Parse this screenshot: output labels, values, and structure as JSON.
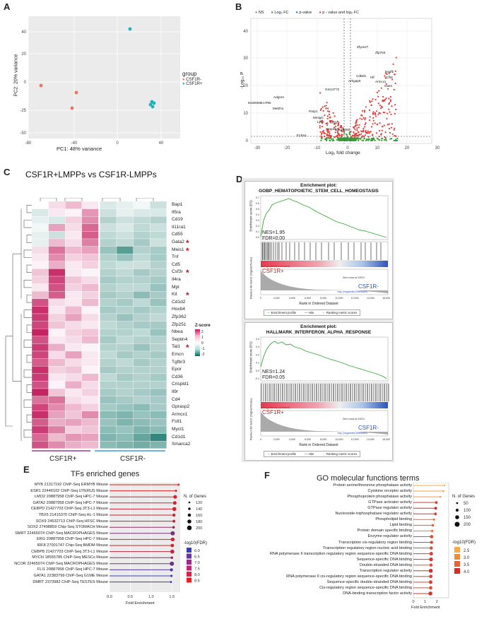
{
  "panel_labels": {
    "A": "A",
    "B": "B",
    "C": "C",
    "D": "D",
    "E": "E",
    "F": "F"
  },
  "pca": {
    "xlabel": "PC1: 48% variance",
    "ylabel": "PC2: 20% variance",
    "xticks": [
      "-80",
      "-40",
      "0",
      "40"
    ],
    "yticks": [
      "40",
      "20",
      "0",
      "-25",
      "-50"
    ],
    "legend_title": "group",
    "legend": [
      {
        "name": "CSF1R-",
        "color": "#e8735f"
      },
      {
        "name": "CSF1R+",
        "color": "#1fb0b8"
      }
    ]
  },
  "volcano": {
    "legend": [
      {
        "name": "NS",
        "color": "#888888"
      },
      {
        "name": "Log₂ FC",
        "color": "#3a9a3a"
      },
      {
        "name": "p-value",
        "color": "#3366cc"
      },
      {
        "name": "p - value and log₂ FC",
        "color": "#e53935"
      }
    ],
    "xlabel": "Log₂ fold change",
    "ylabel": "-Log₁₀ P",
    "xticks": [
      "-30",
      "-20",
      "-10",
      "0",
      "10",
      "20",
      "30"
    ],
    "yticks": [
      "40",
      "30",
      "20",
      "10",
      "0"
    ],
    "genes": [
      "Zfyve27",
      "Zfp763",
      "Nedfb",
      "Cdk8l1",
      "Hlf",
      "Cfh8",
      "Arhgap6",
      "Armcx1",
      "Gas4",
      "Gm13772",
      "Adgre4",
      "9430008E17Rik",
      "Mettl7a",
      "Parp1",
      "Me4glc",
      "Ly6e",
      "Hsf1",
      "Ampd3",
      "Gm16060",
      "Il13ra1"
    ]
  },
  "heatmap": {
    "title": "CSF1R+LMPPs vs CSF1R-LMPPs",
    "genes": [
      "Bap1",
      "Il5ra",
      "Cd19",
      "Il11ra1",
      "Cd55",
      "Gata2",
      "Meis1",
      "Tnf",
      "Cd5",
      "Csf3r",
      "Il4ra",
      "Mpl",
      "Kit",
      "Cd1d2",
      "Hoxb4",
      "Zfp362",
      "Zfp251",
      "Nbea",
      "Septin4",
      "Tal1",
      "Emcn",
      "Tgfbr3",
      "Epor",
      "Cd36",
      "Crispld1",
      "Il9r",
      "Cd4",
      "Gprasp2",
      "Armcx1",
      "Fstl1",
      "Myct1",
      "Cd1d1",
      "Smarca2"
    ],
    "starred": [
      "Gata2",
      "Meis1",
      "Csf3r",
      "Kit",
      "Tal1"
    ],
    "star_symbol": "*",
    "zscore_title": "Z-score",
    "zscore_ticks": [
      "2",
      "1",
      "0",
      "-1",
      "-2"
    ],
    "groups": [
      "CSF1R+",
      "CSF1R-"
    ],
    "values": [
      [
        0,
        0.3,
        0.6,
        0.2,
        -0.3,
        -0.2,
        -0.1,
        -0.4
      ],
      [
        -0.3,
        0.2,
        0.1,
        0.9,
        -0.4,
        -0.2,
        -0.3,
        -0.3
      ],
      [
        -0.2,
        -0.3,
        0.4,
        1.0,
        -0.6,
        -0.4,
        -0.5,
        -0.6
      ],
      [
        -0.1,
        0.8,
        0.3,
        1.3,
        -0.4,
        -0.3,
        -0.5,
        -0.4
      ],
      [
        -0.2,
        -0.4,
        0.2,
        1.4,
        -0.5,
        -0.4,
        -0.6,
        -0.5
      ],
      [
        -0.2,
        0.6,
        0.3,
        1.1,
        -0.6,
        -0.5,
        -0.7,
        -0.4
      ],
      [
        0.3,
        1.2,
        0.6,
        0.8,
        -0.8,
        -1.3,
        -0.6,
        -0.7
      ],
      [
        0.2,
        1.0,
        0.4,
        0.5,
        -0.6,
        -0.8,
        -0.5,
        -0.7
      ],
      [
        0.1,
        0.7,
        0.2,
        0.4,
        -0.5,
        -0.4,
        -0.4,
        -0.6
      ],
      [
        0.5,
        1.8,
        0.2,
        0.1,
        -0.6,
        -0.5,
        -0.7,
        -0.6
      ],
      [
        0.4,
        1.6,
        0.5,
        0.3,
        -0.7,
        -0.6,
        -0.6,
        -0.7
      ],
      [
        0.2,
        1.5,
        0.4,
        0.6,
        -0.6,
        -0.5,
        -0.5,
        -0.8
      ],
      [
        0.6,
        1.4,
        0.2,
        0.4,
        -0.7,
        -0.6,
        -0.9,
        -0.7
      ],
      [
        1.5,
        0.3,
        0.2,
        0.6,
        -0.6,
        -0.7,
        -0.5,
        -0.8
      ],
      [
        1.8,
        0.2,
        0.6,
        0.1,
        -0.7,
        -0.6,
        -0.7,
        -0.6
      ],
      [
        1.7,
        0.4,
        0.8,
        0.3,
        -0.6,
        -0.8,
        -0.6,
        -0.5
      ],
      [
        1.6,
        0.5,
        0.3,
        0.2,
        -0.5,
        -0.6,
        -0.7,
        -0.7
      ],
      [
        1.9,
        0.1,
        0.4,
        0.5,
        -0.6,
        -0.6,
        -0.5,
        -0.8
      ],
      [
        1.5,
        0.2,
        0.3,
        0.6,
        -0.7,
        -0.5,
        -0.6,
        -0.6
      ],
      [
        1.7,
        0.7,
        0.2,
        0.1,
        -0.6,
        -0.6,
        -0.8,
        -0.6
      ],
      [
        1.6,
        0.3,
        0.8,
        0.2,
        -0.5,
        -0.7,
        -0.6,
        -0.7
      ],
      [
        1.4,
        0.6,
        0.3,
        0.2,
        -0.6,
        -0.5,
        -0.7,
        -0.6
      ],
      [
        1.8,
        0.4,
        0.5,
        0.1,
        -0.7,
        -0.6,
        -0.6,
        -0.6
      ],
      [
        1.7,
        0.2,
        0.3,
        0.6,
        -0.5,
        -0.7,
        -0.6,
        -0.7
      ],
      [
        1.5,
        0.1,
        0.7,
        0.3,
        -0.6,
        -0.6,
        -0.6,
        -0.6
      ],
      [
        1.9,
        0.5,
        0.2,
        0.4,
        -0.7,
        -0.6,
        -0.7,
        -0.8
      ],
      [
        1.2,
        1.2,
        0.3,
        0.2,
        -0.8,
        -0.7,
        -0.6,
        -0.7
      ],
      [
        1.6,
        1.0,
        0.6,
        0.4,
        -0.7,
        -0.8,
        -0.9,
        -0.7
      ],
      [
        1.8,
        0.8,
        0.5,
        1.0,
        -0.9,
        -1.0,
        -0.8,
        -0.9
      ],
      [
        1.4,
        0.7,
        0.8,
        0.6,
        -0.8,
        -1.0,
        -0.9,
        -0.8
      ],
      [
        1.7,
        1.1,
        0.4,
        0.5,
        -0.9,
        -0.8,
        -1.0,
        -0.9
      ],
      [
        1.3,
        0.6,
        0.9,
        0.8,
        -1.0,
        -0.9,
        -1.2,
        -1.6
      ],
      [
        1.5,
        1.0,
        0.7,
        0.6,
        -0.9,
        -1.0,
        -1.1,
        -1.0
      ]
    ]
  },
  "gsea": [
    {
      "header": "Enrichment plot:",
      "name": "GOBP_HEMATOPOIETIC_STEM_CELL_HOMEOSTASIS",
      "nes": "NES=1.95",
      "fdr": "FDR=0.00",
      "es_label": "Enrichment score (ES)",
      "rank_label": "Ranked list metric (Signal2Noise)",
      "pos_label": "CSF1R+",
      "neg_label": "CSF1R-",
      "pos_corr": "'pos' (positively correlated)",
      "neg_corr": "'neg' (negatively correlated)",
      "zero_cross": "Zero cross at 10021",
      "xlabel": "Rank in Ordered Dataset",
      "xticks": [
        "0",
        "2,000",
        "4,000",
        "6,000",
        "8,000",
        "10,000",
        "12,000",
        "14,000",
        "16,000"
      ],
      "es_ticks": [
        "0.7",
        "0.6",
        "0.5",
        "0.4",
        "0.3",
        "0.2",
        "0.1",
        "0.0"
      ],
      "legend": [
        "Enrichment profile",
        "Hits",
        "Ranking metric scores"
      ]
    },
    {
      "header": "Enrichment plot:",
      "name": "HALLMARK_INTERFERON_ALPHA_RESPONSE",
      "nes": "NES=1.24",
      "fdr": "FDR=0.05",
      "es_label": "Enrichment score (ES)",
      "rank_label": "Ranked list metric (Signal2Noise)",
      "pos_label": "CSF1R+",
      "neg_label": "CSF1R-",
      "pos_corr": "'pos' (positively correlated)",
      "neg_corr": "'neg' (negatively correlated)",
      "zero_cross": "Zero cross at 10021",
      "xlabel": "Rank in Ordered Dataset",
      "xticks": [
        "0",
        "2,000",
        "4,000",
        "6,000",
        "8,000",
        "10,000",
        "12,000",
        "14,000",
        "16,000"
      ],
      "es_ticks": [
        "0.4",
        "0.3",
        "0.2",
        "0.1",
        "0.0",
        "-0.1"
      ],
      "legend": [
        "Enrichment profile",
        "Hits",
        "Ranking metric scores"
      ]
    }
  ],
  "chart_data": [
    {
      "type": "scatter",
      "title": "TFs enriched genes",
      "xlabel": "Fold Enrichment",
      "xlim": [
        0,
        1.7
      ],
      "xticks": [
        "0.0",
        "0.5",
        "1.0",
        "1.5"
      ],
      "size_legend_title": "N. of Genes",
      "size_legend": [
        "120",
        "140",
        "160",
        "180",
        "200"
      ],
      "color_legend_title": "-log10(FDR)",
      "color_legend": [
        "6.0",
        "6.5",
        "7.0",
        "7.5",
        "8.0",
        "8.5"
      ],
      "terms": [
        "MYB 21317192 ChIP-Seq ERMYB Mouse",
        "ESR1 22446102 ChIP-Seq UTERUS Mouse",
        "LMO2 20887958 ChIP-Seq HPC-7 Mouse",
        "GATA2 20887958 ChIP-Seq HPC-7 Mouse",
        "CEBPD 21427703 ChIP-Seq 3T3-L1 Mouse",
        "TBX5 21415370 ChIP-Seq HL-1 Mouse",
        "SOX9 24532713 ChIP-Seq HFSC Mouse",
        "SOX2 27498859 Chip-Seq STOMACH Mouse",
        "SMRT 22465074 ChIP-Seq MACROPHAGES Mouse",
        "ERG 20887958 ChIP-Seq HPC-7 Mouse",
        "IRF8 27001747 Chip-Seq BMDM Mouse",
        "CEBPB 21427703 ChIP-Seq 3T3-L1 Mouse",
        "MYCN 18555785 ChIP-Seq MESCs Mouse",
        "NCOR 22465074 ChIP-Seq MACROPHAGES Mouse",
        "FLI1 20887958 ChIP-Seq HPC-7 Mouse",
        "GATA1 22383799 ChIP-Seq G1ME Mouse",
        "DMRT 2373982 ChIP-Seq TESTES Mouse"
      ],
      "fold_enrichment": [
        1.66,
        1.6,
        1.58,
        1.57,
        1.56,
        1.55,
        1.55,
        1.54,
        1.52,
        1.52,
        1.51,
        1.51,
        1.5,
        1.5,
        1.49,
        1.49,
        1.48
      ],
      "n_genes": [
        120,
        125,
        180,
        175,
        190,
        160,
        150,
        140,
        200,
        185,
        170,
        190,
        140,
        200,
        160,
        130,
        120
      ],
      "log10fdr": [
        8.7,
        8.6,
        8.5,
        8.5,
        8.4,
        8.3,
        8.2,
        7.4,
        7.0,
        8.3,
        8.4,
        8.0,
        7.4,
        6.8,
        6.4,
        6.0,
        6.0
      ]
    },
    {
      "type": "scatter",
      "title": "GO molecular functions terms",
      "xlabel": "Fold Enrichment",
      "xlim": [
        0,
        3
      ],
      "xticks": [
        "0",
        "1",
        "2"
      ],
      "size_legend_title": "N. of Genes",
      "size_legend": [
        "50",
        "100",
        "150",
        "200"
      ],
      "color_legend_title": "-log10(FDR)",
      "color_legend": [
        "2.5",
        "3.0",
        "3.5",
        "4.0"
      ],
      "terms": [
        "Protein serine/threonine phosphatase activity",
        "Cytokine receptor activity",
        "Phosphoprotein phosphatase activity",
        "GTPase activator activity",
        "GTPase regulator activity",
        "Nucleoside-triphosphatase regulator activity",
        "Phospholipid binding",
        "Lipid binding",
        "Protein domain specific binding",
        "Enzyme regulator activity",
        "Transcription cis-regulatory region binding",
        "Transcription regulatory region nucleic acid binding",
        "RNA polymerase II transcription regulatory region sequence-specific DNA binding",
        "Sequence-specific DNA binding",
        "Double-stranded DNA binding",
        "Transcription regulator activity",
        "RNA polymerase II cis-regulatory region sequence-specific DNA binding",
        "Sequence-specific double-stranded DNA binding",
        "Cis-regulatory region sequence-specific DNA binding",
        "DNA-binding transcription factor activity"
      ],
      "fold_enrichment": [
        2.65,
        2.55,
        2.3,
        1.95,
        1.9,
        1.88,
        1.75,
        1.65,
        1.6,
        1.55,
        1.55,
        1.52,
        1.52,
        1.5,
        1.5,
        1.48,
        1.48,
        1.47,
        1.47,
        1.45
      ],
      "n_genes": [
        50,
        60,
        55,
        110,
        120,
        115,
        80,
        100,
        90,
        160,
        140,
        150,
        170,
        190,
        150,
        200,
        170,
        180,
        160,
        200
      ],
      "log10fdr": [
        2.4,
        2.5,
        2.6,
        3.8,
        4.0,
        3.9,
        3.2,
        3.4,
        3.1,
        3.6,
        3.7,
        3.6,
        3.8,
        3.9,
        3.5,
        4.0,
        3.7,
        3.7,
        3.6,
        3.9
      ]
    }
  ]
}
